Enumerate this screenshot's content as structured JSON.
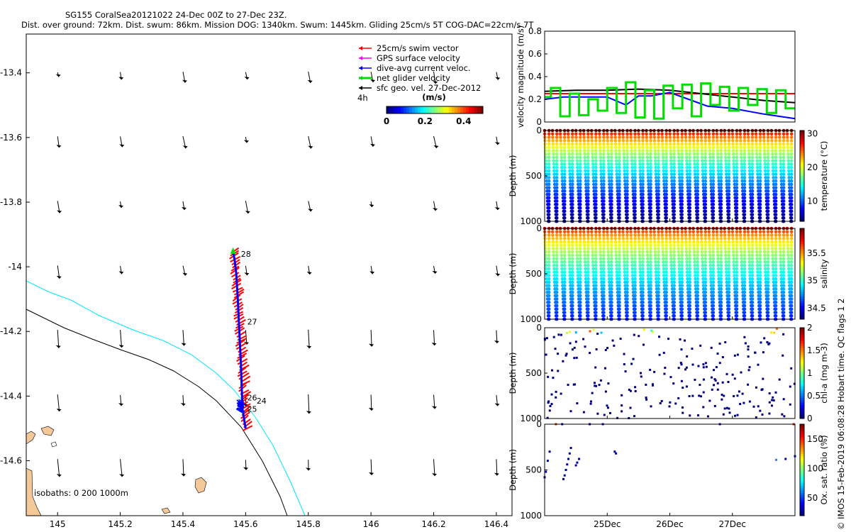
{
  "title_line1": "SG155 CoralSea20121022 24-Dec 00Z to 27-Dec 23Z.",
  "title_line2": "Dist. over ground: 72km. Dist. swum: 86km. Mission DOG: 1340km. Swum: 1445km. Gliding 25cm/s 5T COG-DAC=22cm/s 7T",
  "credit": "© IMOS 15-Feb-2019 06:08:28 Hobart time. QC flags 1  2",
  "colors": {
    "swim": "#ff0000",
    "gps": "#ff00ff",
    "dac": "#0000ff",
    "net": "#00dd00",
    "geo": "#000000",
    "isobath200": "#00e5ff",
    "isobath1000": "#000000",
    "land": "#f5c89a"
  },
  "chart_data": [
    {
      "type": "scatter",
      "name": "map",
      "xlim": [
        144.9,
        146.45
      ],
      "ylim": [
        -14.77,
        -13.28
      ],
      "x_ticks": [
        "145",
        "145.2",
        "145.4",
        "145.6",
        "145.8",
        "146",
        "146.2",
        "146.4"
      ],
      "y_ticks": [
        "-13.4",
        "-13.6",
        "-13.8",
        "-14",
        "-14.2",
        "-14.4",
        "-14.6"
      ],
      "legend": [
        {
          "label": "25cm/s swim vector",
          "color": "swim"
        },
        {
          "label": "GPS surface velocity",
          "color": "gps"
        },
        {
          "label": "dive-avg current veloc.",
          "color": "dac"
        },
        {
          "label": "net glider velocity",
          "color": "net"
        },
        {
          "label": "sfc geo. vel. 27-Dec-2012",
          "color": "geo"
        }
      ],
      "vector_label": "4h",
      "colorbar": {
        "title": "(m/s)",
        "ticks": [
          "0",
          "0.2",
          "0.4"
        ],
        "range": [
          0,
          0.5
        ]
      },
      "isobath_text": "isobaths: 0   200  1000m",
      "geo_grid": {
        "lon": [
          145,
          145.2,
          145.4,
          145.6,
          145.8,
          146,
          146.2,
          146.4
        ],
        "lat": [
          -13.4,
          -13.6,
          -13.8,
          -14,
          -14.2,
          -14.4,
          -14.6
        ]
      },
      "track": {
        "lon": [
          145.6,
          145.59,
          145.585,
          145.58,
          145.575,
          145.57,
          145.565,
          145.56
        ],
        "lat": [
          -14.5,
          -14.44,
          -14.3,
          -14.2,
          -14.1,
          -14.02,
          -13.98,
          -13.95
        ]
      },
      "day_labels": [
        {
          "text": "28",
          "lon": 145.585,
          "lat": -13.96
        },
        {
          "text": "27",
          "lon": 145.605,
          "lat": -14.17
        },
        {
          "text": "26",
          "lon": 145.605,
          "lat": -14.405
        },
        {
          "text": "24",
          "lon": 145.635,
          "lat": -14.415
        },
        {
          "text": "25",
          "lon": 145.605,
          "lat": -14.44
        }
      ]
    },
    {
      "type": "line",
      "name": "velocity",
      "ylabel": "velocity magnitude (m/s)",
      "ylim": [
        0,
        0.8
      ],
      "y_ticks": [
        "0",
        "0.2",
        "0.4",
        "0.6",
        "0.8"
      ],
      "series": [
        {
          "color": "swim",
          "x": [
            24.0,
            25.5,
            26.5,
            27.0,
            27.5,
            28.0
          ],
          "values": [
            0.25,
            0.25,
            0.25,
            0.25,
            0.25,
            0.25
          ]
        },
        {
          "color": "geo",
          "x": [
            24.0,
            24.5,
            25.0,
            25.5,
            26.0,
            26.5,
            27.0,
            27.5,
            28.0
          ],
          "values": [
            0.27,
            0.28,
            0.28,
            0.29,
            0.28,
            0.25,
            0.22,
            0.19,
            0.17
          ]
        },
        {
          "color": "dac",
          "x": [
            24.0,
            24.3,
            24.7,
            25.0,
            25.3,
            25.5,
            25.7,
            26.0,
            26.3,
            26.6,
            27.0,
            27.5,
            28.0
          ],
          "values": [
            0.2,
            0.22,
            0.22,
            0.22,
            0.15,
            0.23,
            0.23,
            0.26,
            0.2,
            0.14,
            0.12,
            0.07,
            0.03
          ]
        },
        {
          "color": "net",
          "x": [
            24.0,
            24.1,
            24.1,
            24.25,
            24.25,
            24.4,
            24.4,
            24.55,
            24.55,
            24.7,
            24.7,
            24.85,
            24.85,
            25.0,
            25.0,
            25.15,
            25.15,
            25.3,
            25.3,
            25.45,
            25.45,
            25.6,
            25.6,
            25.75,
            25.75,
            25.9,
            25.9,
            26.05,
            26.05,
            26.2,
            26.2,
            26.35,
            26.35,
            26.5,
            26.5,
            26.65,
            26.65,
            26.8,
            26.8,
            26.95,
            26.95,
            27.1,
            27.1,
            27.25,
            27.25,
            27.4,
            27.4,
            27.55,
            27.55,
            27.7,
            27.7,
            27.85,
            27.85,
            28.0
          ],
          "values": [
            0.22,
            0.22,
            0.3,
            0.3,
            0.05,
            0.05,
            0.25,
            0.25,
            0.06,
            0.06,
            0.2,
            0.2,
            0.1,
            0.1,
            0.3,
            0.3,
            0.08,
            0.08,
            0.35,
            0.35,
            0.04,
            0.04,
            0.28,
            0.28,
            0.03,
            0.03,
            0.32,
            0.32,
            0.12,
            0.12,
            0.33,
            0.33,
            0.05,
            0.05,
            0.34,
            0.34,
            0.15,
            0.15,
            0.31,
            0.31,
            0.1,
            0.1,
            0.3,
            0.3,
            0.15,
            0.15,
            0.29,
            0.29,
            0.08,
            0.08,
            0.28,
            0.28,
            0.12,
            0.12
          ]
        }
      ]
    },
    {
      "type": "scatter",
      "name": "temperature",
      "ylabel": "Depth (m)",
      "ylim": [
        1000,
        0
      ],
      "y_ticks": [
        "0",
        "500",
        "1000"
      ],
      "clabel": "temperature (°C)",
      "cticks": [
        "10",
        "20",
        "30"
      ],
      "crange": [
        4,
        31
      ]
    },
    {
      "type": "scatter",
      "name": "salinity",
      "ylabel": "Depth (m)",
      "ylim": [
        1000,
        0
      ],
      "y_ticks": [
        "0",
        "500",
        "1000"
      ],
      "clabel": "salinity",
      "cticks": [
        "34.5",
        "35",
        "35.5"
      ],
      "crange": [
        34.3,
        35.95
      ]
    },
    {
      "type": "scatter",
      "name": "chla",
      "ylabel": "Depth (m)",
      "ylim": [
        1000,
        0
      ],
      "y_ticks": [
        "0",
        "500",
        "1000"
      ],
      "clabel": "chl-a (mg m-3)",
      "cticks": [
        "0",
        "0.5",
        "1",
        "1.5",
        "2"
      ],
      "crange": [
        0,
        2
      ]
    },
    {
      "type": "scatter",
      "name": "oxygen",
      "ylabel": "Depth (m)",
      "ylim": [
        1000,
        0
      ],
      "y_ticks": [
        "0",
        "500",
        "1000"
      ],
      "clabel": "Ox. sat. ratio (%)",
      "cticks": [
        "50",
        "100",
        "150"
      ],
      "crange": [
        20,
        175
      ]
    },
    {
      "type": "axis",
      "name": "time",
      "xlim": [
        24,
        28
      ],
      "x_ticks": [
        {
          "x": 25,
          "label": "25Dec"
        },
        {
          "x": 26,
          "label": "26Dec"
        },
        {
          "x": 27,
          "label": "27Dec"
        }
      ]
    }
  ]
}
